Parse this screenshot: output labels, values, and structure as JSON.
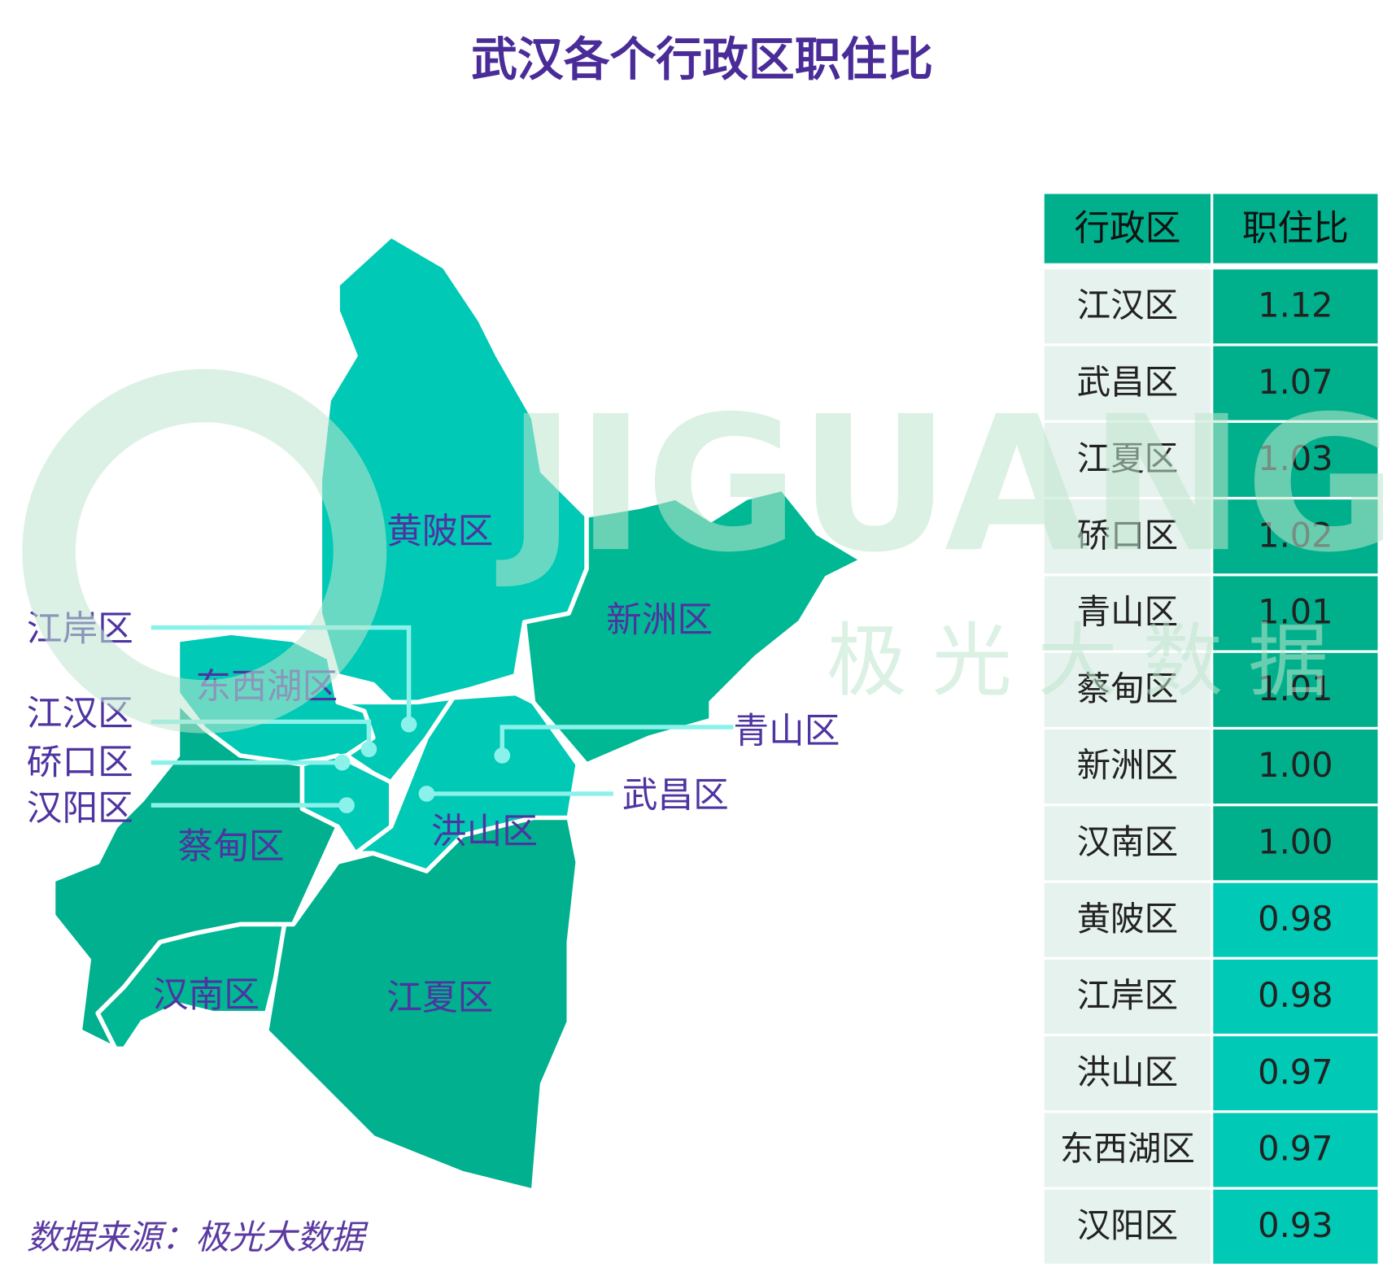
{
  "title": "武汉各个行政区职住比",
  "source": "数据来源：极光大数据",
  "watermark": {
    "brand": "JIGUANG",
    "cn": "极 光 大 数 据"
  },
  "map": {
    "labels": [
      "黄陂区",
      "新洲区",
      "东西湖区",
      "蔡甸区",
      "汉南区",
      "江夏区",
      "洪山区"
    ],
    "callouts": [
      "江岸区",
      "江汉区",
      "硚口区",
      "汉阳区",
      "青山区",
      "武昌区"
    ]
  },
  "table": {
    "header": [
      "行政区",
      "职住比"
    ],
    "rows": [
      [
        "江汉区",
        "1.12"
      ],
      [
        "武昌区",
        "1.07"
      ],
      [
        "江夏区",
        "1.03"
      ],
      [
        "硚口区",
        "1.02"
      ],
      [
        "青山区",
        "1.01"
      ],
      [
        "蔡甸区",
        "1.01"
      ],
      [
        "新洲区",
        "1.00"
      ],
      [
        "汉南区",
        "1.00"
      ],
      [
        "黄陂区",
        "0.98"
      ],
      [
        "江岸区",
        "0.98"
      ],
      [
        "洪山区",
        "0.97"
      ],
      [
        "东西湖区",
        "0.97"
      ],
      [
        "汉阳区",
        "0.93"
      ]
    ],
    "row_colors": [
      "#00b08c",
      "#00b08c",
      "#00b08c",
      "#00b08c",
      "#00b08c",
      "#00b08c",
      "#00b08c",
      "#00b08c",
      "#00c9b5",
      "#00c9b5",
      "#00c9b5",
      "#00c9b5",
      "#00c9b5"
    ]
  }
}
